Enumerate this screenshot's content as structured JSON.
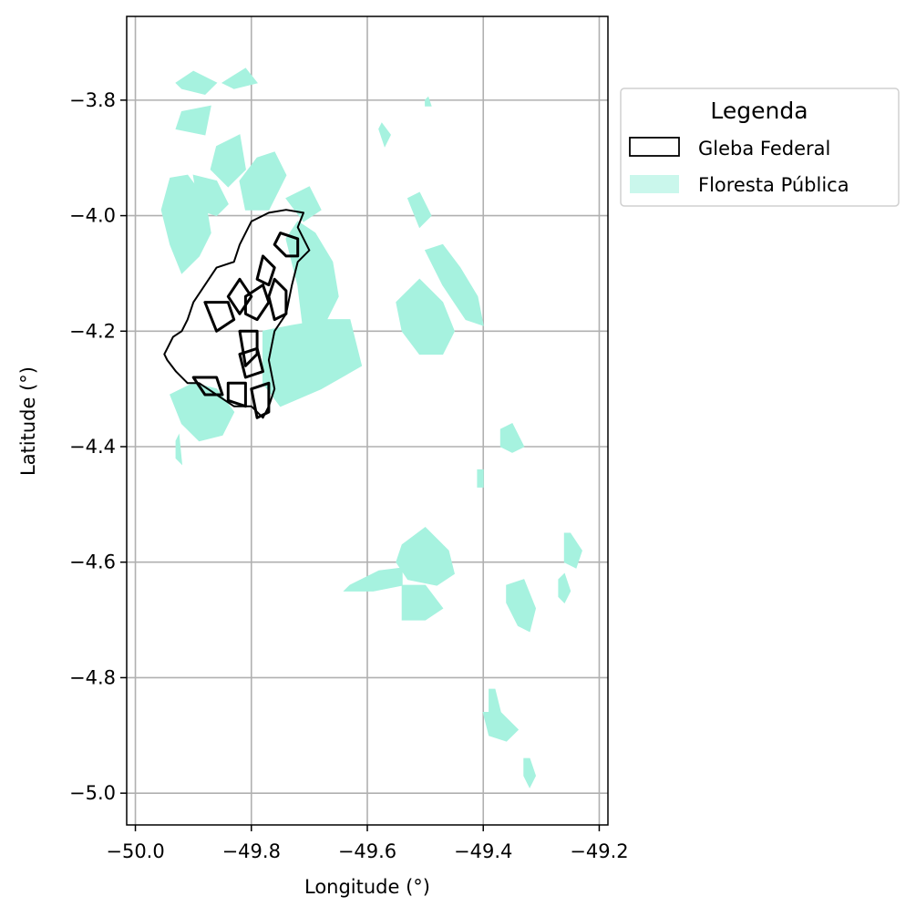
{
  "chart_data": {
    "type": "map",
    "xlabel": "Longitude (°)",
    "ylabel": "Latitude (°)",
    "xlim": [
      -50.015,
      -49.185
    ],
    "ylim": [
      -5.055,
      -3.655
    ],
    "x_ticks": [
      {
        "value": -50.0,
        "label": "−50.0"
      },
      {
        "value": -49.8,
        "label": "−49.8"
      },
      {
        "value": -49.6,
        "label": "−49.6"
      },
      {
        "value": -49.4,
        "label": "−49.4"
      },
      {
        "value": -49.2,
        "label": "−49.2"
      }
    ],
    "y_ticks": [
      {
        "value": -3.8,
        "label": "−3.8"
      },
      {
        "value": -4.0,
        "label": "−4.0"
      },
      {
        "value": -4.2,
        "label": "−4.2"
      },
      {
        "value": -4.4,
        "label": "−4.4"
      },
      {
        "value": -4.6,
        "label": "−4.6"
      },
      {
        "value": -4.8,
        "label": "−4.8"
      },
      {
        "value": -5.0,
        "label": "−5.0"
      }
    ],
    "grid": true,
    "legend": {
      "title": "Legenda",
      "position": "outside-right-top",
      "entries": [
        {
          "label": "Gleba Federal",
          "style": "outline",
          "edge_color": "#000000",
          "fill": "none"
        },
        {
          "label": "Floresta Pública",
          "style": "fill",
          "fill": "#a6f2df",
          "alpha": 0.6
        }
      ]
    },
    "colors": {
      "forest": "#a6f2df",
      "gleba_edge": "#000000",
      "grid": "#b0b0b0"
    },
    "layers": [
      {
        "name": "Floresta Pública",
        "polygons": [
          [
            [
              -49.93,
              -3.77
            ],
            [
              -49.9,
              -3.75
            ],
            [
              -49.86,
              -3.77
            ],
            [
              -49.88,
              -3.79
            ],
            [
              -49.92,
              -3.78
            ]
          ],
          [
            [
              -49.85,
              -3.77
            ],
            [
              -49.81,
              -3.745
            ],
            [
              -49.79,
              -3.77
            ],
            [
              -49.83,
              -3.78
            ]
          ],
          [
            [
              -49.92,
              -3.82
            ],
            [
              -49.87,
              -3.81
            ],
            [
              -49.88,
              -3.86
            ],
            [
              -49.93,
              -3.85
            ]
          ],
          [
            [
              -49.94,
              -3.935
            ],
            [
              -49.91,
              -3.93
            ],
            [
              -49.88,
              -3.97
            ],
            [
              -49.87,
              -4.03
            ],
            [
              -49.89,
              -4.07
            ],
            [
              -49.92,
              -4.1
            ],
            [
              -49.94,
              -4.05
            ],
            [
              -49.955,
              -3.99
            ]
          ],
          [
            [
              -49.9,
              -3.93
            ],
            [
              -49.86,
              -3.94
            ],
            [
              -49.84,
              -3.98
            ],
            [
              -49.86,
              -4.0
            ],
            [
              -49.89,
              -3.99
            ]
          ],
          [
            [
              -49.86,
              -3.88
            ],
            [
              -49.82,
              -3.86
            ],
            [
              -49.81,
              -3.92
            ],
            [
              -49.84,
              -3.95
            ],
            [
              -49.87,
              -3.92
            ]
          ],
          [
            [
              -49.82,
              -3.94
            ],
            [
              -49.79,
              -3.9
            ],
            [
              -49.76,
              -3.89
            ],
            [
              -49.74,
              -3.93
            ],
            [
              -49.77,
              -3.99
            ],
            [
              -49.81,
              -3.99
            ]
          ],
          [
            [
              -49.74,
              -3.97
            ],
            [
              -49.7,
              -3.95
            ],
            [
              -49.68,
              -3.99
            ],
            [
              -49.71,
              -4.01
            ]
          ],
          [
            [
              -49.72,
              -4.01
            ],
            [
              -49.69,
              -4.03
            ],
            [
              -49.66,
              -4.08
            ],
            [
              -49.65,
              -4.14
            ],
            [
              -49.67,
              -4.18
            ],
            [
              -49.71,
              -4.2
            ],
            [
              -49.72,
              -4.12
            ],
            [
              -49.74,
              -4.04
            ]
          ],
          [
            [
              -49.78,
              -4.2
            ],
            [
              -49.73,
              -4.19
            ],
            [
              -49.67,
              -4.18
            ],
            [
              -49.63,
              -4.18
            ],
            [
              -49.61,
              -4.26
            ],
            [
              -49.68,
              -4.3
            ],
            [
              -49.75,
              -4.33
            ],
            [
              -49.78,
              -4.29
            ]
          ],
          [
            [
              -49.94,
              -4.31
            ],
            [
              -49.9,
              -4.29
            ],
            [
              -49.86,
              -4.3
            ],
            [
              -49.83,
              -4.34
            ],
            [
              -49.85,
              -4.38
            ],
            [
              -49.89,
              -4.39
            ],
            [
              -49.92,
              -4.36
            ]
          ],
          [
            [
              -49.93,
              -4.39
            ],
            [
              -49.925,
              -4.38
            ],
            [
              -49.92,
              -4.43
            ],
            [
              -49.93,
              -4.42
            ]
          ],
          [
            [
              -49.55,
              -4.15
            ],
            [
              -49.51,
              -4.11
            ],
            [
              -49.47,
              -4.15
            ],
            [
              -49.45,
              -4.2
            ],
            [
              -49.47,
              -4.24
            ],
            [
              -49.51,
              -4.24
            ],
            [
              -49.54,
              -4.2
            ]
          ],
          [
            [
              -49.5,
              -4.06
            ],
            [
              -49.47,
              -4.05
            ],
            [
              -49.44,
              -4.09
            ],
            [
              -49.41,
              -4.14
            ],
            [
              -49.4,
              -4.19
            ],
            [
              -49.43,
              -4.18
            ],
            [
              -49.47,
              -4.12
            ]
          ],
          [
            [
              -49.53,
              -3.97
            ],
            [
              -49.51,
              -3.96
            ],
            [
              -49.49,
              -4.0
            ],
            [
              -49.51,
              -4.02
            ]
          ],
          [
            [
              -49.58,
              -3.85
            ],
            [
              -49.575,
              -3.84
            ],
            [
              -49.56,
              -3.86
            ],
            [
              -49.57,
              -3.88
            ]
          ],
          [
            [
              -49.5,
              -3.8
            ],
            [
              -49.495,
              -3.795
            ],
            [
              -49.49,
              -3.81
            ],
            [
              -49.5,
              -3.81
            ]
          ],
          [
            [
              -49.37,
              -4.37
            ],
            [
              -49.35,
              -4.36
            ],
            [
              -49.33,
              -4.4
            ],
            [
              -49.35,
              -4.41
            ],
            [
              -49.37,
              -4.4
            ]
          ],
          [
            [
              -49.41,
              -4.44
            ],
            [
              -49.4,
              -4.44
            ],
            [
              -49.4,
              -4.47
            ],
            [
              -49.41,
              -4.47
            ]
          ],
          [
            [
              -49.63,
              -4.64
            ],
            [
              -49.58,
              -4.615
            ],
            [
              -49.54,
              -4.61
            ],
            [
              -49.54,
              -4.64
            ],
            [
              -49.59,
              -4.65
            ],
            [
              -49.64,
              -4.65
            ]
          ],
          [
            [
              -49.54,
              -4.57
            ],
            [
              -49.5,
              -4.54
            ],
            [
              -49.46,
              -4.58
            ],
            [
              -49.45,
              -4.62
            ],
            [
              -49.48,
              -4.64
            ],
            [
              -49.53,
              -4.63
            ],
            [
              -49.55,
              -4.6
            ]
          ],
          [
            [
              -49.54,
              -4.64
            ],
            [
              -49.5,
              -4.64
            ],
            [
              -49.47,
              -4.68
            ],
            [
              -49.5,
              -4.7
            ],
            [
              -49.54,
              -4.7
            ]
          ],
          [
            [
              -49.26,
              -4.55
            ],
            [
              -49.25,
              -4.55
            ],
            [
              -49.23,
              -4.58
            ],
            [
              -49.24,
              -4.61
            ],
            [
              -49.26,
              -4.6
            ]
          ],
          [
            [
              -49.27,
              -4.63
            ],
            [
              -49.26,
              -4.62
            ],
            [
              -49.25,
              -4.65
            ],
            [
              -49.26,
              -4.67
            ],
            [
              -49.27,
              -4.66
            ]
          ],
          [
            [
              -49.36,
              -4.64
            ],
            [
              -49.33,
              -4.63
            ],
            [
              -49.31,
              -4.68
            ],
            [
              -49.32,
              -4.72
            ],
            [
              -49.34,
              -4.71
            ],
            [
              -49.36,
              -4.67
            ]
          ],
          [
            [
              -49.39,
              -4.82
            ],
            [
              -49.38,
              -4.82
            ],
            [
              -49.37,
              -4.86
            ],
            [
              -49.38,
              -4.88
            ],
            [
              -49.39,
              -4.86
            ]
          ],
          [
            [
              -49.4,
              -4.86
            ],
            [
              -49.37,
              -4.86
            ],
            [
              -49.34,
              -4.89
            ],
            [
              -49.36,
              -4.91
            ],
            [
              -49.39,
              -4.9
            ]
          ],
          [
            [
              -49.33,
              -4.94
            ],
            [
              -49.32,
              -4.94
            ],
            [
              -49.31,
              -4.97
            ],
            [
              -49.32,
              -4.99
            ],
            [
              -49.33,
              -4.97
            ]
          ]
        ]
      },
      {
        "name": "Gleba Federal",
        "outline": [
          [
            -49.74,
            -3.99
          ],
          [
            -49.71,
            -3.995
          ],
          [
            -49.72,
            -4.02
          ],
          [
            -49.7,
            -4.06
          ],
          [
            -49.72,
            -4.08
          ],
          [
            -49.73,
            -4.12
          ],
          [
            -49.74,
            -4.17
          ],
          [
            -49.76,
            -4.2
          ],
          [
            -49.77,
            -4.25
          ],
          [
            -49.76,
            -4.3
          ],
          [
            -49.77,
            -4.33
          ],
          [
            -49.78,
            -4.35
          ],
          [
            -49.8,
            -4.33
          ],
          [
            -49.83,
            -4.33
          ],
          [
            -49.86,
            -4.31
          ],
          [
            -49.89,
            -4.29
          ],
          [
            -49.91,
            -4.29
          ],
          [
            -49.93,
            -4.27
          ],
          [
            -49.945,
            -4.25
          ],
          [
            -49.95,
            -4.24
          ],
          [
            -49.935,
            -4.21
          ],
          [
            -49.92,
            -4.2
          ],
          [
            -49.91,
            -4.18
          ],
          [
            -49.9,
            -4.15
          ],
          [
            -49.88,
            -4.12
          ],
          [
            -49.86,
            -4.09
          ],
          [
            -49.83,
            -4.08
          ],
          [
            -49.82,
            -4.05
          ],
          [
            -49.8,
            -4.01
          ],
          [
            -49.77,
            -3.995
          ]
        ],
        "holes": [
          [
            [
              -49.75,
              -4.03
            ],
            [
              -49.72,
              -4.04
            ],
            [
              -49.72,
              -4.07
            ],
            [
              -49.74,
              -4.07
            ],
            [
              -49.76,
              -4.05
            ]
          ],
          [
            [
              -49.78,
              -4.07
            ],
            [
              -49.76,
              -4.09
            ],
            [
              -49.77,
              -4.12
            ],
            [
              -49.79,
              -4.11
            ]
          ],
          [
            [
              -49.76,
              -4.11
            ],
            [
              -49.74,
              -4.13
            ],
            [
              -49.74,
              -4.17
            ],
            [
              -49.76,
              -4.18
            ],
            [
              -49.77,
              -4.14
            ]
          ],
          [
            [
              -49.81,
              -4.14
            ],
            [
              -49.78,
              -4.12
            ],
            [
              -49.77,
              -4.15
            ],
            [
              -49.79,
              -4.18
            ],
            [
              -49.81,
              -4.17
            ]
          ],
          [
            [
              -49.84,
              -4.14
            ],
            [
              -49.82,
              -4.11
            ],
            [
              -49.8,
              -4.14
            ],
            [
              -49.82,
              -4.17
            ]
          ],
          [
            [
              -49.88,
              -4.15
            ],
            [
              -49.84,
              -4.15
            ],
            [
              -49.83,
              -4.18
            ],
            [
              -49.86,
              -4.2
            ]
          ],
          [
            [
              -49.82,
              -4.2
            ],
            [
              -49.79,
              -4.2
            ],
            [
              -49.79,
              -4.24
            ],
            [
              -49.81,
              -4.26
            ]
          ],
          [
            [
              -49.82,
              -4.24
            ],
            [
              -49.79,
              -4.23
            ],
            [
              -49.78,
              -4.27
            ],
            [
              -49.81,
              -4.28
            ]
          ],
          [
            [
              -49.9,
              -4.28
            ],
            [
              -49.86,
              -4.28
            ],
            [
              -49.85,
              -4.31
            ],
            [
              -49.88,
              -4.31
            ]
          ],
          [
            [
              -49.84,
              -4.29
            ],
            [
              -49.81,
              -4.29
            ],
            [
              -49.81,
              -4.33
            ],
            [
              -49.84,
              -4.32
            ]
          ],
          [
            [
              -49.8,
              -4.3
            ],
            [
              -49.77,
              -4.29
            ],
            [
              -49.77,
              -4.34
            ],
            [
              -49.79,
              -4.35
            ]
          ]
        ]
      }
    ]
  }
}
